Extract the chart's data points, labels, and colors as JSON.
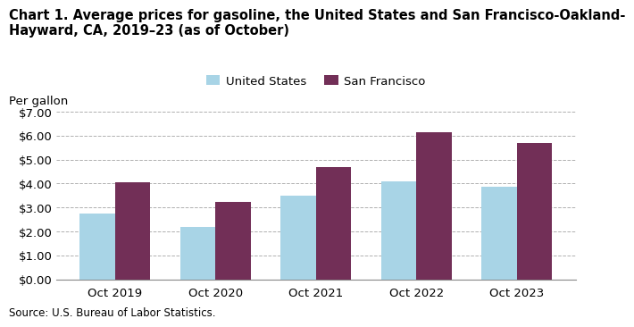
{
  "title_line1": "Chart 1. Average prices for gasoline, the United States and San Francisco-Oakland-",
  "title_line2": "Hayward, CA, 2019–23 (as of October)",
  "ylabel": "Per gallon",
  "source": "Source: U.S. Bureau of Labor Statistics.",
  "categories": [
    "Oct 2019",
    "Oct 2020",
    "Oct 2021",
    "Oct 2022",
    "Oct 2023"
  ],
  "us_values": [
    2.75,
    2.18,
    3.48,
    4.1,
    3.88
  ],
  "sf_values": [
    4.06,
    3.22,
    4.7,
    6.13,
    5.7
  ],
  "us_color": "#a8d4e6",
  "sf_color": "#722f57",
  "us_label": "United States",
  "sf_label": "San Francisco",
  "ylim": [
    0,
    7.0
  ],
  "yticks": [
    0.0,
    1.0,
    2.0,
    3.0,
    4.0,
    5.0,
    6.0,
    7.0
  ],
  "bar_width": 0.35,
  "background_color": "#ffffff",
  "grid_color": "#b0b0b0",
  "title_fontsize": 10.5,
  "axis_label_fontsize": 9.5,
  "legend_fontsize": 9.5,
  "tick_fontsize": 9.5,
  "source_fontsize": 8.5
}
